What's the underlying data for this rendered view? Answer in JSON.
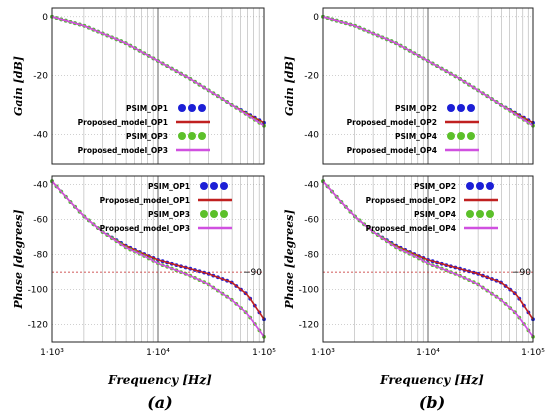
{
  "colors": {
    "psim_a": "#1c1fd6",
    "psim_b": "#5cc02a",
    "model_a": "#c02020",
    "model_b": "#d050e0",
    "ref_line": "#c02020",
    "grid": "#a0a0a0"
  },
  "xlabel": "Frequency [Hz]",
  "panel_labels": [
    "(a)",
    "(b)"
  ],
  "chart_data": [
    {
      "type": "line",
      "panel": "(a)",
      "plot": "gain",
      "ylabel": "Gain [dB]",
      "xscale": "log",
      "xlim": [
        1000,
        100000
      ],
      "ylim": [
        -50,
        3
      ],
      "x_ticks": [
        "1·10³",
        "1·10⁴",
        "1·10⁵"
      ],
      "y_ticks": [
        0,
        -20,
        -40
      ],
      "grid": true,
      "legend_position": "inside-right",
      "series": [
        {
          "name": "PSIM_OP1",
          "style": "dots",
          "color_key": "psim_a",
          "x": [
            1000,
            2000,
            5000,
            10000,
            20000,
            50000,
            100000
          ],
          "y": [
            0,
            -3,
            -9,
            -15,
            -21,
            -30,
            -36
          ]
        },
        {
          "name": "Proposed_model_OP1",
          "style": "line",
          "color_key": "model_a",
          "x": [
            1000,
            2000,
            5000,
            10000,
            20000,
            50000,
            100000
          ],
          "y": [
            0,
            -3,
            -9,
            -15,
            -21,
            -30,
            -36
          ]
        },
        {
          "name": "PSIM_OP3",
          "style": "dots",
          "color_key": "psim_b",
          "x": [
            1000,
            2000,
            5000,
            10000,
            20000,
            50000,
            100000
          ],
          "y": [
            0,
            -3,
            -9,
            -15,
            -21,
            -30,
            -37
          ]
        },
        {
          "name": "Proposed_model_OP3",
          "style": "line",
          "color_key": "model_b",
          "x": [
            1000,
            2000,
            5000,
            10000,
            20000,
            50000,
            100000
          ],
          "y": [
            0,
            -3,
            -9,
            -15,
            -21,
            -30,
            -37
          ]
        }
      ]
    },
    {
      "type": "line",
      "panel": "(b)",
      "plot": "gain",
      "ylabel": "Gain [dB]",
      "xscale": "log",
      "xlim": [
        1000,
        100000
      ],
      "ylim": [
        -50,
        3
      ],
      "x_ticks": [
        "1·10³",
        "1·10⁴",
        "1·10⁵"
      ],
      "y_ticks": [
        0,
        -20,
        -40
      ],
      "grid": true,
      "legend_position": "inside-right",
      "series": [
        {
          "name": "PSIM_OP2",
          "style": "dots",
          "color_key": "psim_a",
          "x": [
            1000,
            2000,
            5000,
            10000,
            20000,
            50000,
            100000
          ],
          "y": [
            0,
            -3,
            -9,
            -15,
            -21,
            -30,
            -36
          ]
        },
        {
          "name": "Proposed_model_OP2",
          "style": "line",
          "color_key": "model_a",
          "x": [
            1000,
            2000,
            5000,
            10000,
            20000,
            50000,
            100000
          ],
          "y": [
            0,
            -3,
            -9,
            -15,
            -21,
            -30,
            -36
          ]
        },
        {
          "name": "PSIM_OP4",
          "style": "dots",
          "color_key": "psim_b",
          "x": [
            1000,
            2000,
            5000,
            10000,
            20000,
            50000,
            100000
          ],
          "y": [
            0,
            -3,
            -9,
            -15,
            -21,
            -30,
            -37
          ]
        },
        {
          "name": "Proposed_model_OP4",
          "style": "line",
          "color_key": "model_b",
          "x": [
            1000,
            2000,
            5000,
            10000,
            20000,
            50000,
            100000
          ],
          "y": [
            0,
            -3,
            -9,
            -15,
            -21,
            -30,
            -37
          ]
        }
      ]
    },
    {
      "type": "line",
      "panel": "(a)",
      "plot": "phase",
      "ylabel": "Phase [degrees]",
      "xscale": "log",
      "xlim": [
        1000,
        100000
      ],
      "ylim": [
        -130,
        -35
      ],
      "x_ticks": [
        "1·10³",
        "1·10⁴",
        "1·10⁵"
      ],
      "y_ticks": [
        -40,
        -60,
        -80,
        -100,
        -120
      ],
      "grid": true,
      "reference_line": {
        "y": -90,
        "label": "−90"
      },
      "legend_position": "top-right",
      "series": [
        {
          "name": "PSIM_OP1",
          "style": "dots",
          "color_key": "psim_a",
          "x": [
            1000,
            1500,
            2000,
            3000,
            5000,
            7000,
            10000,
            15000,
            20000,
            30000,
            50000,
            70000,
            100000
          ],
          "y": [
            -38,
            -50,
            -58,
            -67,
            -75,
            -79,
            -83,
            -86,
            -88,
            -91,
            -96,
            -103,
            -117
          ]
        },
        {
          "name": "Proposed_model_OP1",
          "style": "line",
          "color_key": "model_a",
          "x": [
            1000,
            1500,
            2000,
            3000,
            5000,
            7000,
            10000,
            15000,
            20000,
            30000,
            50000,
            70000,
            100000
          ],
          "y": [
            -38,
            -50,
            -58,
            -67,
            -75,
            -79,
            -83,
            -86,
            -88,
            -91,
            -96,
            -103,
            -117
          ]
        },
        {
          "name": "PSIM_OP3",
          "style": "dots",
          "color_key": "psim_b",
          "x": [
            1000,
            1500,
            2000,
            3000,
            5000,
            7000,
            10000,
            15000,
            20000,
            30000,
            50000,
            70000,
            100000
          ],
          "y": [
            -38,
            -50,
            -58,
            -67,
            -76,
            -80,
            -85,
            -89,
            -92,
            -97,
            -106,
            -114,
            -127
          ]
        },
        {
          "name": "Proposed_model_OP3",
          "style": "line",
          "color_key": "model_b",
          "x": [
            1000,
            1500,
            2000,
            3000,
            5000,
            7000,
            10000,
            15000,
            20000,
            30000,
            50000,
            70000,
            100000
          ],
          "y": [
            -38,
            -50,
            -58,
            -67,
            -76,
            -80,
            -85,
            -89,
            -92,
            -97,
            -106,
            -114,
            -127
          ]
        }
      ]
    },
    {
      "type": "line",
      "panel": "(b)",
      "plot": "phase",
      "ylabel": "Phase [degrees]",
      "xscale": "log",
      "xlim": [
        1000,
        100000
      ],
      "ylim": [
        -130,
        -35
      ],
      "x_ticks": [
        "1·10³",
        "1·10⁴",
        "1·10⁵"
      ],
      "y_ticks": [
        -40,
        -60,
        -80,
        -100,
        -120
      ],
      "grid": true,
      "reference_line": {
        "y": -90,
        "label": "−90"
      },
      "legend_position": "top-right",
      "series": [
        {
          "name": "PSIM_OP2",
          "style": "dots",
          "color_key": "psim_a",
          "x": [
            1000,
            1500,
            2000,
            3000,
            5000,
            7000,
            10000,
            15000,
            20000,
            30000,
            50000,
            70000,
            100000
          ],
          "y": [
            -38,
            -50,
            -58,
            -67,
            -75,
            -79,
            -83,
            -86,
            -88,
            -91,
            -96,
            -103,
            -117
          ]
        },
        {
          "name": "Proposed_model_OP2",
          "style": "line",
          "color_key": "model_a",
          "x": [
            1000,
            1500,
            2000,
            3000,
            5000,
            7000,
            10000,
            15000,
            20000,
            30000,
            50000,
            70000,
            100000
          ],
          "y": [
            -38,
            -50,
            -58,
            -67,
            -75,
            -79,
            -83,
            -86,
            -88,
            -91,
            -96,
            -103,
            -117
          ]
        },
        {
          "name": "PSIM_OP4",
          "style": "dots",
          "color_key": "psim_b",
          "x": [
            1000,
            1500,
            2000,
            3000,
            5000,
            7000,
            10000,
            15000,
            20000,
            30000,
            50000,
            70000,
            100000
          ],
          "y": [
            -38,
            -50,
            -58,
            -67,
            -76,
            -80,
            -85,
            -89,
            -92,
            -97,
            -106,
            -114,
            -127
          ]
        },
        {
          "name": "Proposed_model_OP4",
          "style": "line",
          "color_key": "model_b",
          "x": [
            1000,
            1500,
            2000,
            3000,
            5000,
            7000,
            10000,
            15000,
            20000,
            30000,
            50000,
            70000,
            100000
          ],
          "y": [
            -38,
            -50,
            -58,
            -67,
            -76,
            -80,
            -85,
            -89,
            -92,
            -97,
            -106,
            -114,
            -127
          ]
        }
      ]
    }
  ]
}
